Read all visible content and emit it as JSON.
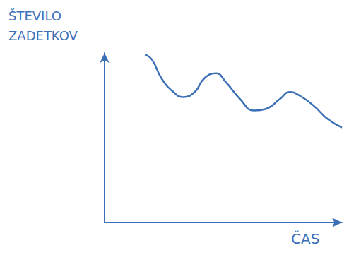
{
  "chart_data": {
    "type": "line",
    "x_label": "ČAS",
    "y_label": "ŠTEVILO ZADETKOV",
    "x": [
      17,
      20,
      24,
      29,
      33,
      38,
      42,
      47,
      51,
      57,
      63,
      68,
      74,
      78,
      82,
      88,
      94,
      100
    ],
    "values": [
      99,
      96,
      85,
      77,
      74,
      77,
      85,
      88,
      83,
      73,
      66,
      67,
      73,
      77,
      75,
      69,
      61,
      56
    ],
    "color": "#3b6fb6",
    "xlim": [
      0,
      100
    ],
    "ylim": [
      0,
      100
    ],
    "grid": false,
    "tick_labels": false
  }
}
